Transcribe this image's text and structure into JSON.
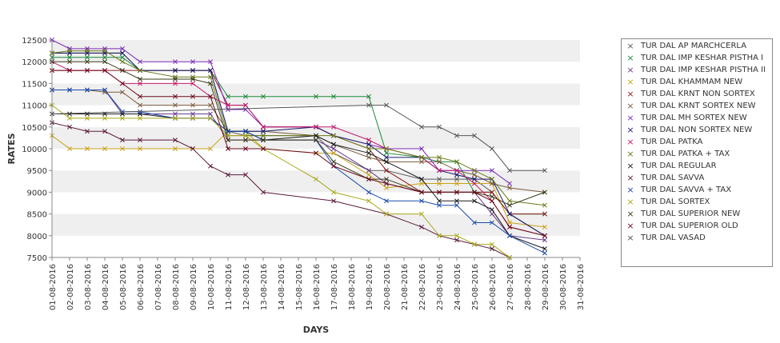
{
  "chart_data": {
    "type": "line",
    "title": "",
    "xlabel": "DAYS",
    "ylabel": "RATES",
    "ylim": [
      7500,
      12500
    ],
    "yticks": [
      7500,
      8000,
      8500,
      9000,
      9500,
      10000,
      10500,
      11000,
      11500,
      12000,
      12500
    ],
    "ytick_labels": [
      "7500",
      "8000",
      "8500",
      "9000",
      "9500",
      "10000",
      "10500",
      "11000",
      "11500",
      "12000",
      "12500"
    ],
    "x": [
      "01-08-2016",
      "02-08-2016",
      "03-08-2016",
      "04-08-2016",
      "05-08-2016",
      "06-08-2016",
      "07-08-2016",
      "08-08-2016",
      "09-08-2016",
      "10-08-2016",
      "11-08-2016",
      "12-08-2016",
      "13-08-2016",
      "14-08-2016",
      "15-08-2016",
      "16-08-2016",
      "17-08-2016",
      "18-08-2016",
      "19-08-2016",
      "20-08-2016",
      "21-08-2016",
      "22-08-2016",
      "23-08-2016",
      "24-08-2016",
      "25-08-2016",
      "26-08-2016",
      "27-08-2016",
      "28-08-2016",
      "29-08-2016",
      "30-08-2016",
      "31-08-2016"
    ],
    "grid": "horizontal bands",
    "legend_position": "right",
    "series": [
      {
        "name": "TUR DAL AP MARCHCERLA",
        "color": "#5a5a5a",
        "values": [
          12200,
          12200,
          12200,
          12200,
          12200,
          11800,
          null,
          11800,
          11800,
          11800,
          10400,
          10300,
          10300,
          null,
          null,
          10300,
          9900,
          null,
          9500,
          9500,
          null,
          9300,
          9300,
          9300,
          9300,
          9000,
          8500,
          null,
          8000,
          null,
          null
        ]
      },
      {
        "name": "TUR DAL IMP KESHAR PISTHA I",
        "color": "#1a8a3a",
        "values": [
          12100,
          12100,
          12100,
          12100,
          12100,
          11800,
          null,
          11800,
          11800,
          11800,
          11200,
          11200,
          11200,
          null,
          null,
          11200,
          11200,
          null,
          11200,
          9900,
          null,
          9800,
          9700,
          9700,
          9000,
          9000,
          8500,
          null,
          8500,
          null,
          null
        ]
      },
      {
        "name": "TUR DAL IMP KESHAR PISTHA II",
        "color": "#6a3a8a",
        "values": [
          11350,
          11350,
          11350,
          11350,
          10800,
          10800,
          null,
          10800,
          10800,
          10800,
          10200,
          10200,
          10200,
          null,
          null,
          10200,
          10000,
          null,
          9500,
          9200,
          null,
          9000,
          9000,
          9000,
          9000,
          8500,
          8000,
          null,
          7900,
          null,
          null
        ]
      },
      {
        "name": "TUR DAL KHAMMAM NEW",
        "color": "#c9a21a",
        "values": [
          10300,
          10000,
          10000,
          10000,
          10000,
          10000,
          null,
          10000,
          10000,
          10000,
          10400,
          10400,
          10000,
          null,
          null,
          9900,
          9900,
          null,
          9400,
          9100,
          null,
          9200,
          9200,
          9200,
          9200,
          9200,
          8300,
          null,
          8200,
          null,
          null
        ]
      },
      {
        "name": "TUR DAL KRNT NON SORTEX",
        "color": "#8a1a1a",
        "values": [
          11800,
          11800,
          11800,
          11800,
          11800,
          11800,
          null,
          11800,
          11800,
          11800,
          11000,
          11000,
          10500,
          null,
          null,
          10500,
          10300,
          null,
          10000,
          9500,
          null,
          9000,
          9000,
          9000,
          9000,
          9000,
          8500,
          null,
          8500,
          null,
          null
        ]
      },
      {
        "name": "TUR DAL KRNT SORTEX NEW",
        "color": "#7a5a3a",
        "values": [
          11350,
          11350,
          11350,
          11300,
          11300,
          11000,
          null,
          11000,
          11000,
          11000,
          10400,
          10400,
          10400,
          null,
          null,
          10300,
          10100,
          null,
          9800,
          9700,
          null,
          9700,
          9700,
          9500,
          9400,
          9200,
          9100,
          null,
          9000,
          null,
          null
        ]
      },
      {
        "name": "TUR DAL MH SORTEX NEW",
        "color": "#7a2ab8",
        "values": [
          12500,
          12300,
          12300,
          12300,
          12300,
          12000,
          null,
          12000,
          12000,
          12000,
          10900,
          10900,
          10500,
          null,
          null,
          10500,
          10300,
          null,
          10100,
          10000,
          null,
          10000,
          9500,
          9500,
          9500,
          9500,
          9200,
          null,
          null,
          null,
          null
        ]
      },
      {
        "name": "TUR DAL NON SORTEX NEW",
        "color": "#1a1a6a",
        "values": [
          12200,
          12200,
          12200,
          12200,
          12200,
          11800,
          null,
          11800,
          11800,
          11800,
          10400,
          10400,
          10400,
          null,
          null,
          10500,
          10300,
          null,
          10100,
          9800,
          null,
          9800,
          9500,
          9400,
          9300,
          9300,
          8500,
          null,
          8000,
          null,
          null
        ]
      },
      {
        "name": "TUR DAL PATKA",
        "color": "#c21a6a",
        "values": [
          12000,
          11800,
          11800,
          11800,
          11500,
          11500,
          null,
          11500,
          11500,
          11200,
          11000,
          11000,
          10500,
          null,
          null,
          10500,
          10500,
          null,
          10200,
          10000,
          null,
          9800,
          9500,
          9500,
          9200,
          8800,
          8200,
          null,
          8000,
          null,
          null
        ]
      },
      {
        "name": "TUR DAL PATKA + TAX",
        "color": "#6a7a1a",
        "values": [
          12200,
          12250,
          12250,
          12250,
          12000,
          11800,
          null,
          11650,
          11650,
          11650,
          10300,
          10300,
          10300,
          null,
          null,
          10300,
          10300,
          null,
          10000,
          10000,
          null,
          9800,
          9800,
          9700,
          9500,
          9300,
          8800,
          null,
          8700,
          null,
          null
        ]
      },
      {
        "name": "TUR DAL REGULAR",
        "color": "#1a1a1a",
        "values": [
          10800,
          10800,
          10800,
          10800,
          10800,
          10800,
          null,
          10700,
          10700,
          10700,
          10400,
          10400,
          10200,
          null,
          null,
          10300,
          10100,
          null,
          9900,
          9700,
          null,
          9300,
          8800,
          8800,
          8800,
          8600,
          8000,
          null,
          7700,
          null,
          null
        ]
      },
      {
        "name": "TUR DAL SAVVA",
        "color": "#5a1a3a",
        "values": [
          10600,
          10500,
          10400,
          10400,
          10200,
          10200,
          null,
          10200,
          10000,
          9600,
          9400,
          9400,
          9000,
          null,
          null,
          null,
          8800,
          null,
          null,
          8500,
          null,
          8200,
          8000,
          7900,
          7800,
          7700,
          7500,
          null,
          null,
          null,
          null
        ]
      },
      {
        "name": "TUR DAL SAVVA + TAX",
        "color": "#1a4aa8",
        "values": [
          11350,
          11350,
          11350,
          11350,
          10850,
          10850,
          null,
          10700,
          10700,
          10700,
          10400,
          10400,
          10200,
          null,
          null,
          10200,
          9600,
          null,
          9000,
          8800,
          null,
          8800,
          8700,
          8700,
          8300,
          8300,
          8000,
          null,
          7600,
          null,
          null
        ]
      },
      {
        "name": "TUR DAL SORTEX",
        "color": "#a8a81a",
        "values": [
          11000,
          10700,
          10700,
          10700,
          10700,
          10700,
          null,
          10700,
          10700,
          10700,
          10300,
          10300,
          10000,
          null,
          null,
          9300,
          9000,
          null,
          8800,
          8500,
          null,
          8500,
          8000,
          8000,
          7800,
          7800,
          7500,
          null,
          null,
          null,
          null
        ]
      },
      {
        "name": "TUR DAL SUPERIOR NEW",
        "color": "#3a3a1a",
        "values": [
          12000,
          12000,
          12000,
          12000,
          11800,
          11600,
          null,
          11600,
          11600,
          11500,
          10200,
          10200,
          10200,
          null,
          null,
          10200,
          9700,
          null,
          9300,
          9300,
          null,
          9000,
          9000,
          9000,
          9000,
          8900,
          8700,
          null,
          9000,
          null,
          null
        ]
      },
      {
        "name": "TUR DAL SUPERIOR OLD",
        "color": "#6a0a1a",
        "values": [
          11800,
          11800,
          11800,
          11800,
          11500,
          11200,
          null,
          11200,
          11200,
          11200,
          10000,
          10000,
          10000,
          null,
          null,
          9900,
          9600,
          null,
          9300,
          9200,
          null,
          9000,
          9000,
          9000,
          9000,
          8800,
          8200,
          null,
          8000,
          null,
          null
        ]
      },
      {
        "name": "TUR DAL VASAD",
        "color": "#555555",
        "values": [
          10800,
          null,
          null,
          null,
          null,
          null,
          null,
          null,
          null,
          null,
          null,
          null,
          null,
          null,
          null,
          null,
          null,
          null,
          11000,
          11000,
          null,
          10500,
          10500,
          10300,
          10300,
          10000,
          9500,
          null,
          9500,
          null,
          null
        ]
      }
    ]
  }
}
